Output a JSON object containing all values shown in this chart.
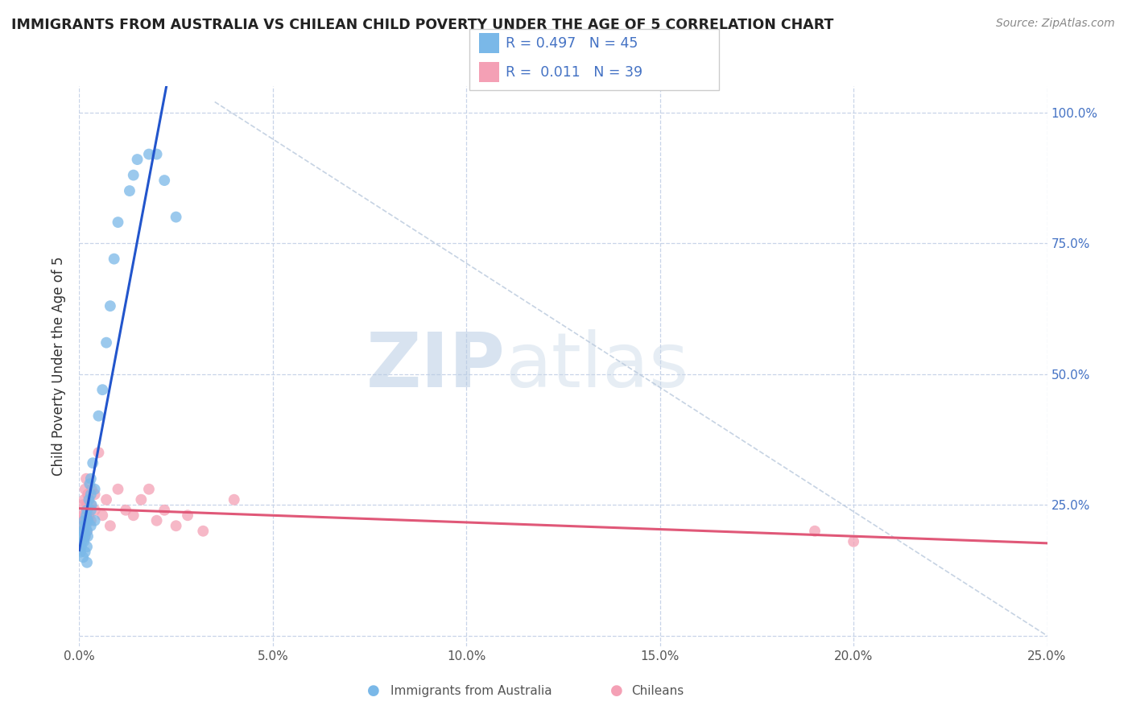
{
  "title": "IMMIGRANTS FROM AUSTRALIA VS CHILEAN CHILD POVERTY UNDER THE AGE OF 5 CORRELATION CHART",
  "source": "Source: ZipAtlas.com",
  "ylabel": "Child Poverty Under the Age of 5",
  "xlim": [
    0,
    0.25
  ],
  "ylim": [
    -0.02,
    1.05
  ],
  "xticks": [
    0.0,
    0.05,
    0.1,
    0.15,
    0.2,
    0.25
  ],
  "xticklabels": [
    "0.0%",
    "5.0%",
    "10.0%",
    "15.0%",
    "20.0%",
    "25.0%"
  ],
  "yticks": [
    0.0,
    0.25,
    0.5,
    0.75,
    1.0
  ],
  "yticklabels_right": [
    "",
    "25.0%",
    "50.0%",
    "75.0%",
    "100.0%"
  ],
  "color_blue": "#7ab8e8",
  "color_pink": "#f4a0b5",
  "color_blue_line": "#2255cc",
  "color_pink_line": "#e05878",
  "background": "#ffffff",
  "grid_color": "#c8d4e8",
  "watermark_zip": "ZIP",
  "watermark_atlas": "atlas",
  "dot_size": 100,
  "australia_x": [
    0.0003,
    0.0005,
    0.0007,
    0.0008,
    0.001,
    0.001,
    0.001,
    0.001,
    0.0012,
    0.0013,
    0.0013,
    0.0015,
    0.0015,
    0.0017,
    0.0018,
    0.002,
    0.002,
    0.002,
    0.002,
    0.002,
    0.0022,
    0.0023,
    0.0025,
    0.0027,
    0.003,
    0.003,
    0.003,
    0.003,
    0.0032,
    0.0035,
    0.004,
    0.004,
    0.005,
    0.006,
    0.007,
    0.008,
    0.009,
    0.01,
    0.013,
    0.014,
    0.015,
    0.018,
    0.02,
    0.022,
    0.025
  ],
  "australia_y": [
    0.16,
    0.17,
    0.18,
    0.19,
    0.19,
    0.2,
    0.21,
    0.15,
    0.18,
    0.2,
    0.22,
    0.16,
    0.19,
    0.21,
    0.23,
    0.14,
    0.17,
    0.2,
    0.22,
    0.24,
    0.19,
    0.22,
    0.26,
    0.29,
    0.21,
    0.24,
    0.27,
    0.3,
    0.25,
    0.33,
    0.22,
    0.28,
    0.42,
    0.47,
    0.56,
    0.63,
    0.72,
    0.79,
    0.85,
    0.88,
    0.91,
    0.92,
    0.92,
    0.87,
    0.8
  ],
  "chilean_x": [
    0.0002,
    0.0005,
    0.0006,
    0.0008,
    0.001,
    0.001,
    0.0012,
    0.0013,
    0.0015,
    0.0015,
    0.0017,
    0.0018,
    0.002,
    0.002,
    0.002,
    0.0022,
    0.0025,
    0.003,
    0.003,
    0.0032,
    0.004,
    0.004,
    0.005,
    0.006,
    0.007,
    0.008,
    0.01,
    0.012,
    0.014,
    0.016,
    0.018,
    0.02,
    0.022,
    0.025,
    0.028,
    0.032,
    0.04,
    0.19,
    0.2
  ],
  "chilean_y": [
    0.19,
    0.21,
    0.23,
    0.2,
    0.22,
    0.25,
    0.23,
    0.26,
    0.19,
    0.28,
    0.22,
    0.3,
    0.2,
    0.23,
    0.25,
    0.27,
    0.23,
    0.22,
    0.25,
    0.28,
    0.24,
    0.27,
    0.35,
    0.23,
    0.26,
    0.21,
    0.28,
    0.24,
    0.23,
    0.26,
    0.28,
    0.22,
    0.24,
    0.21,
    0.23,
    0.2,
    0.26,
    0.2,
    0.18
  ]
}
